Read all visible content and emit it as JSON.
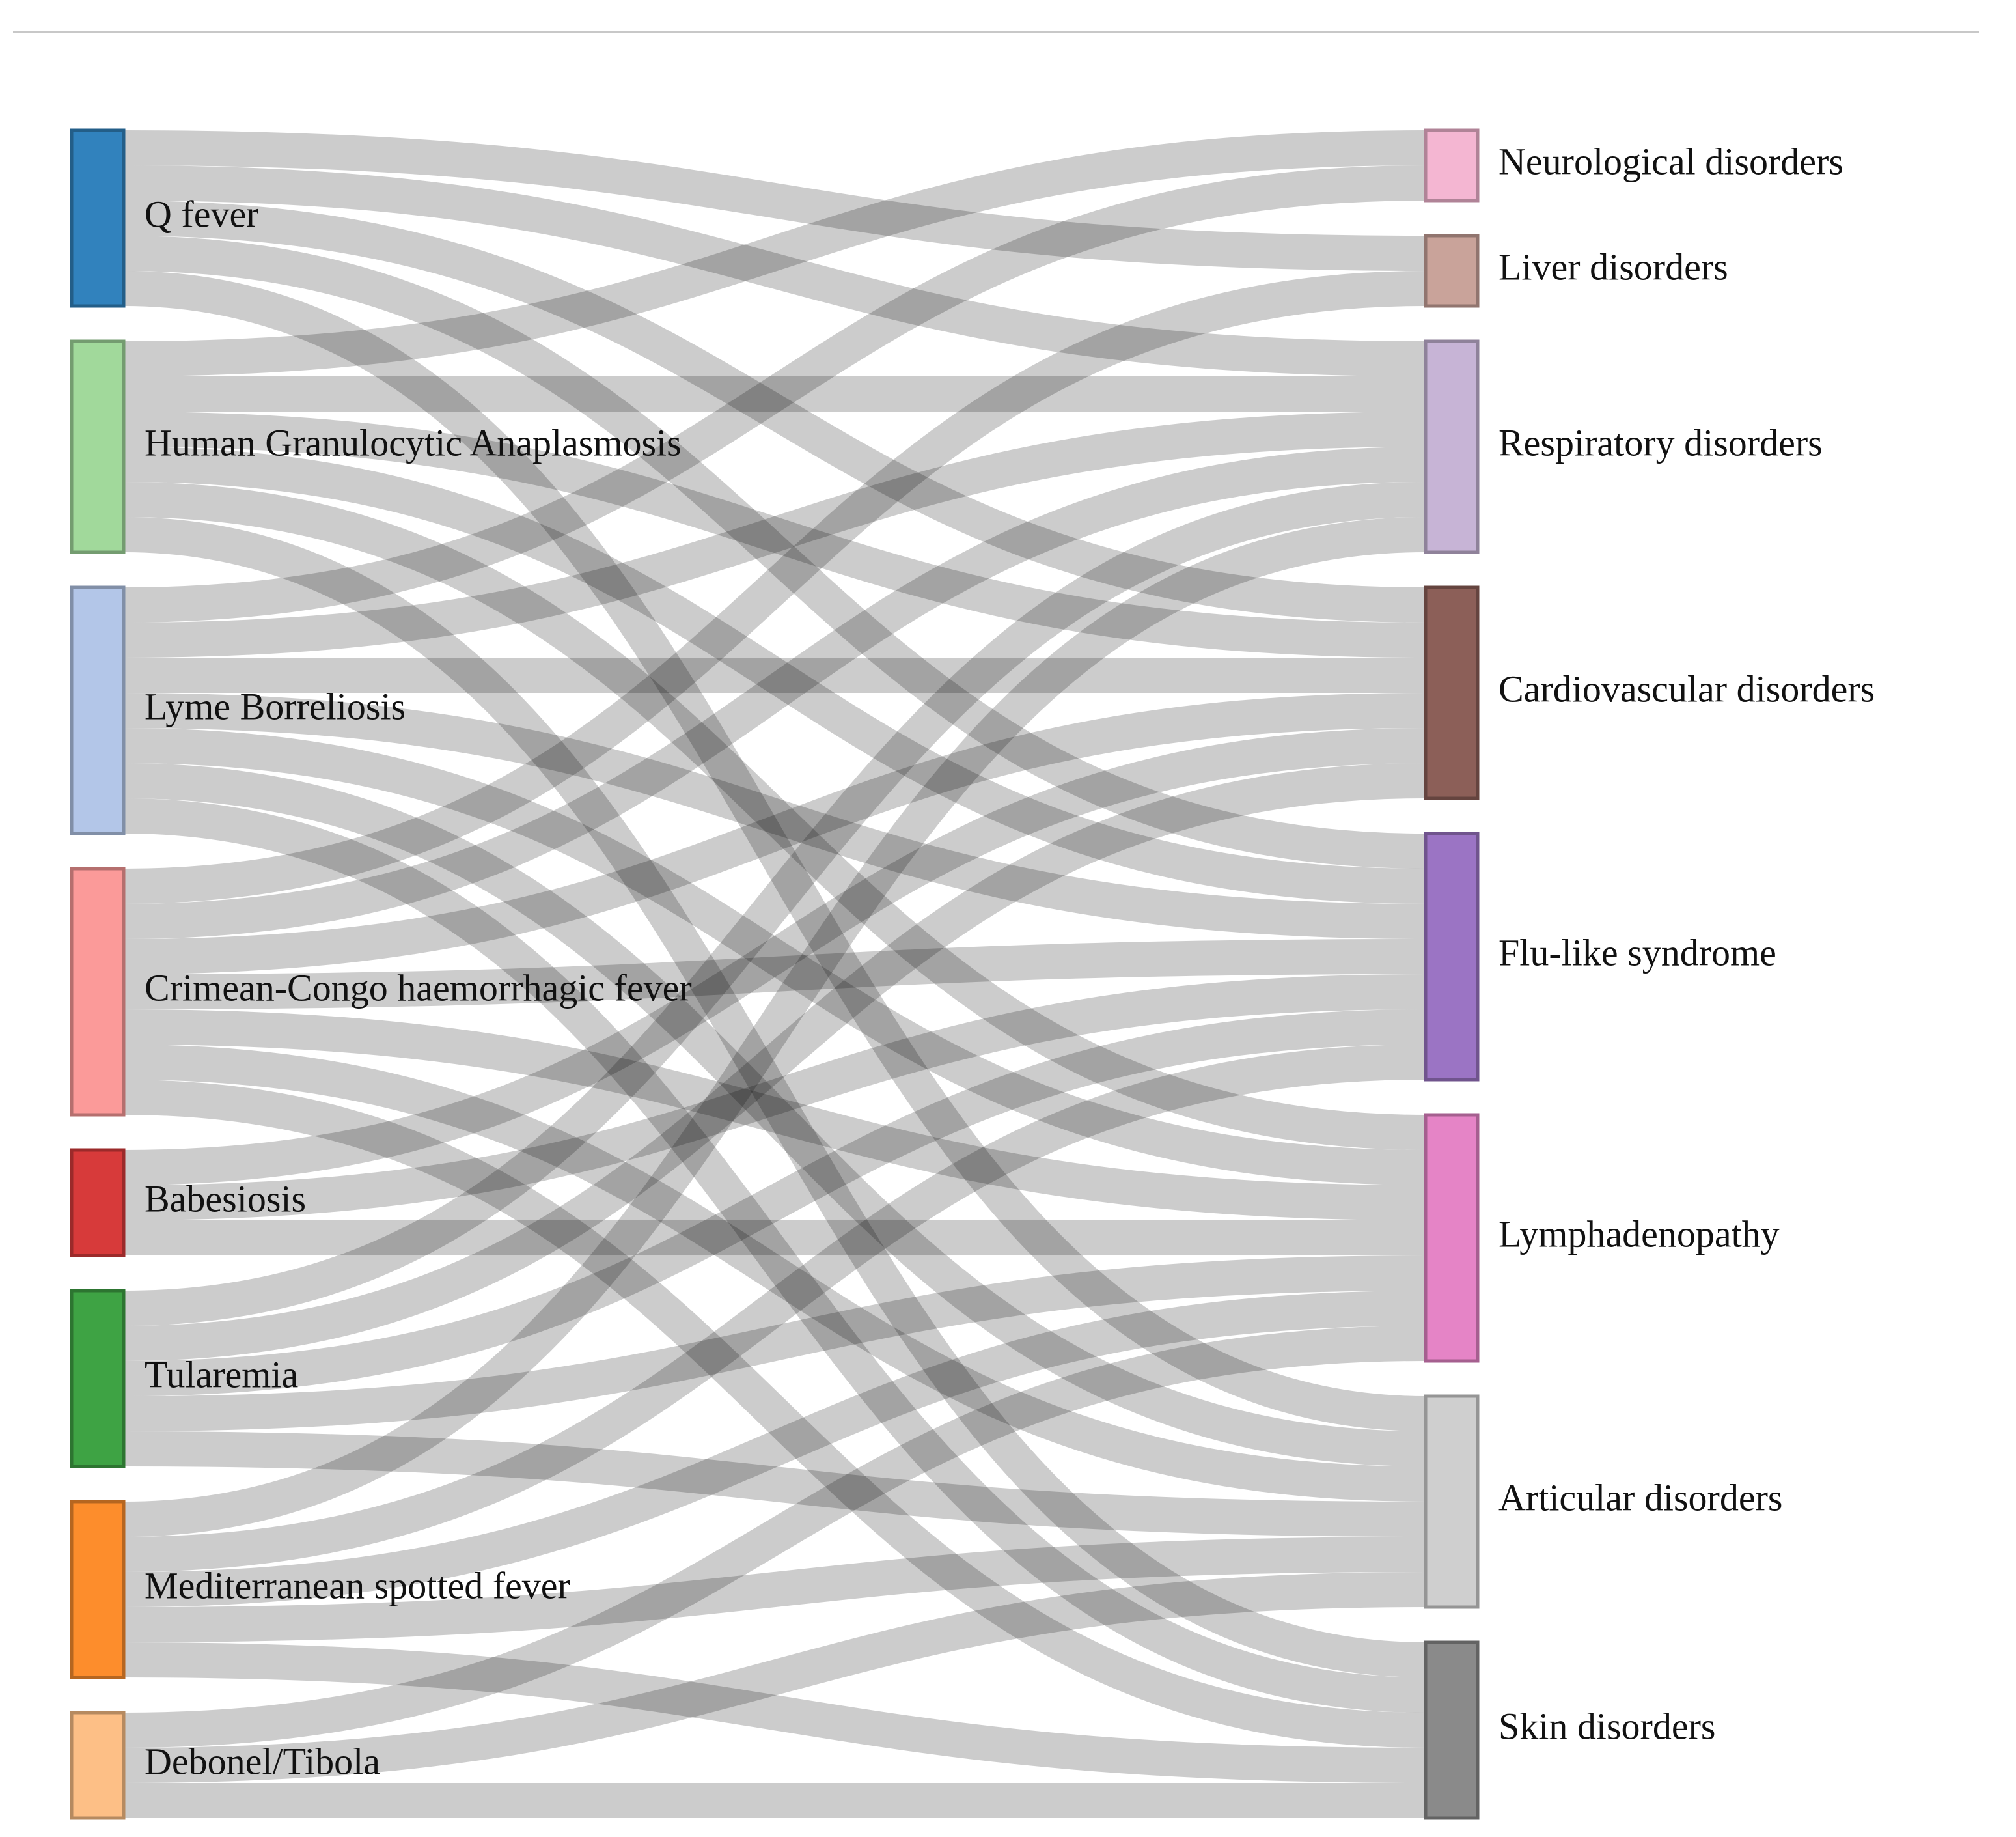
{
  "diagram": {
    "type": "sankey",
    "value_unit": "",
    "sources": [
      {
        "id": "qfever",
        "label": "Q fever",
        "color": "#3182bd"
      },
      {
        "id": "hga",
        "label": "Human Granulocytic Anaplasmosis",
        "color": "#a1d99b"
      },
      {
        "id": "lyme",
        "label": "Lyme Borreliosis",
        "color": "#b3c6e8"
      },
      {
        "id": "cchf",
        "label": "Crimean-Congo haemorrhagic fever",
        "color": "#fb9a99"
      },
      {
        "id": "babesiosis",
        "label": "Babesiosis",
        "color": "#d73a3a"
      },
      {
        "id": "tularemia",
        "label": "Tularemia",
        "color": "#3ea344"
      },
      {
        "id": "msf",
        "label": "Mediterranean spotted fever",
        "color": "#fd8d2c"
      },
      {
        "id": "debonel",
        "label": "Debonel/Tibola",
        "color": "#fdbf86"
      }
    ],
    "targets": [
      {
        "id": "neuro",
        "label": "Neurological disorders",
        "color": "#f4b6d2"
      },
      {
        "id": "liver",
        "label": "Liver disorders",
        "color": "#c9a39a"
      },
      {
        "id": "resp",
        "label": "Respiratory disorders",
        "color": "#c7b4d6"
      },
      {
        "id": "cardio",
        "label": "Cardiovascular disorders",
        "color": "#8c5f58"
      },
      {
        "id": "flu",
        "label": "Flu-like syndrome",
        "color": "#9b74c4"
      },
      {
        "id": "lymph",
        "label": "Lymphadenopathy",
        "color": "#e584c6"
      },
      {
        "id": "artic",
        "label": "Articular disorders",
        "color": "#cfcfcf"
      },
      {
        "id": "skin",
        "label": "Skin disorders",
        "color": "#8a8a8a"
      }
    ],
    "links": [
      {
        "source": "qfever",
        "target": "liver",
        "value": 1
      },
      {
        "source": "qfever",
        "target": "resp",
        "value": 1
      },
      {
        "source": "qfever",
        "target": "cardio",
        "value": 1
      },
      {
        "source": "qfever",
        "target": "flu",
        "value": 1
      },
      {
        "source": "qfever",
        "target": "artic",
        "value": 1
      },
      {
        "source": "hga",
        "target": "neuro",
        "value": 1
      },
      {
        "source": "hga",
        "target": "resp",
        "value": 1
      },
      {
        "source": "hga",
        "target": "cardio",
        "value": 1
      },
      {
        "source": "hga",
        "target": "flu",
        "value": 1
      },
      {
        "source": "hga",
        "target": "lymph",
        "value": 1
      },
      {
        "source": "hga",
        "target": "skin",
        "value": 1
      },
      {
        "source": "lyme",
        "target": "neuro",
        "value": 1
      },
      {
        "source": "lyme",
        "target": "resp",
        "value": 1
      },
      {
        "source": "lyme",
        "target": "cardio",
        "value": 1
      },
      {
        "source": "lyme",
        "target": "flu",
        "value": 1
      },
      {
        "source": "lyme",
        "target": "lymph",
        "value": 1
      },
      {
        "source": "lyme",
        "target": "artic",
        "value": 1
      },
      {
        "source": "lyme",
        "target": "skin",
        "value": 1
      },
      {
        "source": "cchf",
        "target": "liver",
        "value": 1
      },
      {
        "source": "cchf",
        "target": "resp",
        "value": 1
      },
      {
        "source": "cchf",
        "target": "cardio",
        "value": 1
      },
      {
        "source": "cchf",
        "target": "flu",
        "value": 1
      },
      {
        "source": "cchf",
        "target": "lymph",
        "value": 1
      },
      {
        "source": "cchf",
        "target": "artic",
        "value": 1
      },
      {
        "source": "cchf",
        "target": "skin",
        "value": 1
      },
      {
        "source": "babesiosis",
        "target": "cardio",
        "value": 1
      },
      {
        "source": "babesiosis",
        "target": "flu",
        "value": 1
      },
      {
        "source": "babesiosis",
        "target": "lymph",
        "value": 1
      },
      {
        "source": "tularemia",
        "target": "resp",
        "value": 1
      },
      {
        "source": "tularemia",
        "target": "cardio",
        "value": 1
      },
      {
        "source": "tularemia",
        "target": "flu",
        "value": 1
      },
      {
        "source": "tularemia",
        "target": "lymph",
        "value": 1
      },
      {
        "source": "tularemia",
        "target": "artic",
        "value": 1
      },
      {
        "source": "msf",
        "target": "resp",
        "value": 1
      },
      {
        "source": "msf",
        "target": "flu",
        "value": 1
      },
      {
        "source": "msf",
        "target": "lymph",
        "value": 1
      },
      {
        "source": "msf",
        "target": "artic",
        "value": 1
      },
      {
        "source": "msf",
        "target": "skin",
        "value": 1
      },
      {
        "source": "debonel",
        "target": "lymph",
        "value": 1
      },
      {
        "source": "debonel",
        "target": "artic",
        "value": 1
      },
      {
        "source": "debonel",
        "target": "skin",
        "value": 1
      }
    ]
  }
}
